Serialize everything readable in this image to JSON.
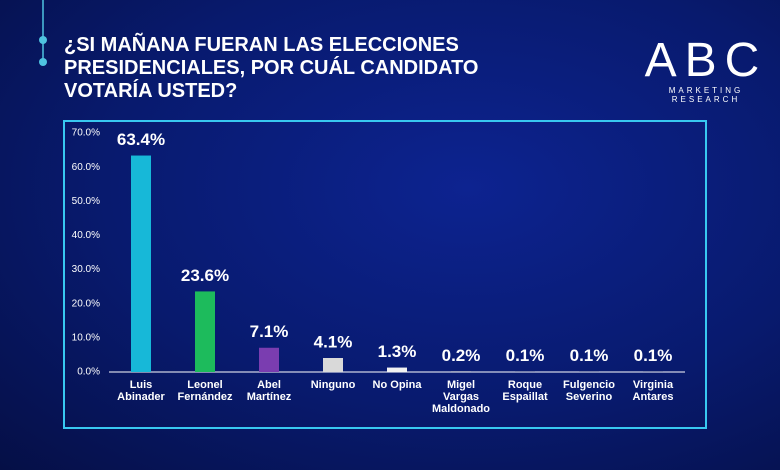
{
  "logo": {
    "name": "ABC",
    "tagline": "MARKETING RESEARCH"
  },
  "chart_data": {
    "type": "bar",
    "title": "¿SI MAÑANA FUERAN LAS ELECCIONES PRESIDENCIALES, POR  CUÁL CANDIDATO VOTARÍA USTED?",
    "categories": [
      "Luis Abinader",
      "Leonel Fernández",
      "Abel Martínez",
      "Ninguno",
      "No Opina",
      "Migel Vargas Maldonado",
      "Roque Espaillat",
      "Fulgencio Severino",
      "Virginia Antares"
    ],
    "values": [
      63.4,
      23.6,
      7.1,
      4.1,
      1.3,
      0.2,
      0.1,
      0.1,
      0.1
    ],
    "value_labels": [
      "63.4%",
      "23.6%",
      "7.1%",
      "4.1%",
      "1.3%",
      "0.2%",
      "0.1%",
      "0.1%",
      "0.1%"
    ],
    "colors": [
      "#17b8d8",
      "#1dbb5c",
      "#7a3db0",
      "#d9d9d9",
      "#f2f2f2",
      "#d9d9d9",
      "#d9d9d9",
      "#d9d9d9",
      "#d9d9d9"
    ],
    "ylim": [
      0,
      70
    ],
    "yticks": [
      {
        "value": 0,
        "label": "0.0%"
      },
      {
        "value": 10,
        "label": "10.0%"
      },
      {
        "value": 20,
        "label": "20.0%"
      },
      {
        "value": 30,
        "label": "30.0%"
      },
      {
        "value": 40,
        "label": "40.0%"
      },
      {
        "value": 50,
        "label": "50.0%"
      },
      {
        "value": 60,
        "label": "60.0%"
      },
      {
        "value": 70,
        "label": "70.0%"
      }
    ],
    "grid": false
  }
}
